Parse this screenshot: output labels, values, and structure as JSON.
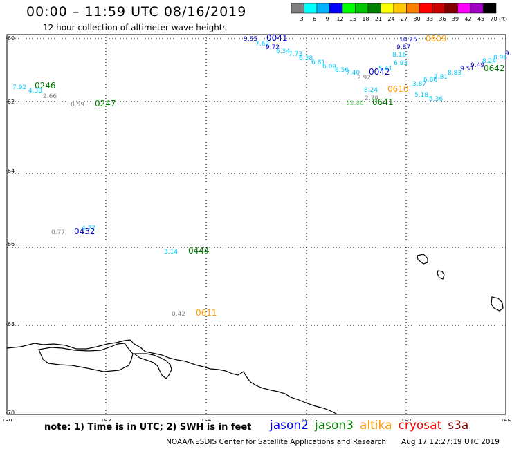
{
  "header": {
    "title": "00:00 – 11:59 UTC 08/16/2019",
    "subtitle": "12 hour collection of altimeter wave heights"
  },
  "colorbar": {
    "ticks": [
      "3",
      "6",
      "9",
      "12",
      "15",
      "18",
      "21",
      "24",
      "27",
      "30",
      "33",
      "36",
      "39",
      "42",
      "45",
      "70"
    ],
    "unit": "(ft)",
    "colors": [
      "#808080",
      "#00ffff",
      "#00b4ff",
      "#0000ff",
      "#00ff00",
      "#00c800",
      "#008000",
      "#ffff00",
      "#ffc800",
      "#ff8000",
      "#ff0000",
      "#c80000",
      "#800000",
      "#ff00ff",
      "#a000c0",
      "#000000"
    ]
  },
  "axes": {
    "lat_labels": [
      "-60",
      "-62",
      "-64",
      "-66",
      "-68",
      "-70"
    ],
    "lon_labels": [
      "150",
      "153",
      "156",
      "159",
      "162",
      "165"
    ]
  },
  "observations": [
    {
      "text": "9.55",
      "color": "#0000c8"
    },
    {
      "text": "0041",
      "color": "#0000c8"
    },
    {
      "text": "7.62",
      "color": "#00c8ff"
    },
    {
      "text": "9.72",
      "color": "#0000c8"
    },
    {
      "text": "6.34",
      "color": "#00c8ff"
    },
    {
      "text": "7.73",
      "color": "#00c8ff"
    },
    {
      "text": "6.38",
      "color": "#00c8ff"
    },
    {
      "text": "6.81",
      "color": "#00c8ff"
    },
    {
      "text": "6.09",
      "color": "#00c8ff"
    },
    {
      "text": "6.56",
      "color": "#00c8ff"
    },
    {
      "text": "7.40",
      "color": "#00c8ff"
    },
    {
      "text": "0042",
      "color": "#0000c8"
    },
    {
      "text": "2.92",
      "color": "#808080"
    },
    {
      "text": "10.25",
      "color": "#0000c8"
    },
    {
      "text": "0609",
      "color": "#ff9900"
    },
    {
      "text": "9.87",
      "color": "#0000c8"
    },
    {
      "text": "8.16",
      "color": "#00c8ff"
    },
    {
      "text": "6.93",
      "color": "#00c8ff"
    },
    {
      "text": "5.41",
      "color": "#00c8ff"
    },
    {
      "text": "8.24",
      "color": "#00c8ff"
    },
    {
      "text": "0610",
      "color": "#ff9900"
    },
    {
      "text": "3.87",
      "color": "#00c8ff"
    },
    {
      "text": "6.88",
      "color": "#00c8ff"
    },
    {
      "text": "7.81",
      "color": "#00c8ff"
    },
    {
      "text": "8.83",
      "color": "#00c8ff"
    },
    {
      "text": "9.51",
      "color": "#0000c8"
    },
    {
      "text": "9.49",
      "color": "#0000c8"
    },
    {
      "text": "8.24",
      "color": "#00c8ff"
    },
    {
      "text": "8.96",
      "color": "#00c8ff"
    },
    {
      "text": "0642",
      "color": "#008000"
    },
    {
      "text": "9.",
      "color": "#0000c8"
    },
    {
      "text": "2.79",
      "color": "#808080"
    },
    {
      "text": "5.18",
      "color": "#00c8ff"
    },
    {
      "text": "5.36",
      "color": "#00c8ff"
    },
    {
      "text": "13.80",
      "color": "#66dd66"
    },
    {
      "text": "0641",
      "color": "#008000"
    },
    {
      "text": "7.92",
      "color": "#00c8ff"
    },
    {
      "text": "0246",
      "color": "#008000"
    },
    {
      "text": "4.38",
      "color": "#00c8ff"
    },
    {
      "text": "2.66",
      "color": "#808080"
    },
    {
      "text": "0.59",
      "color": "#808080"
    },
    {
      "text": "0247",
      "color": "#008000"
    },
    {
      "text": "0.77",
      "color": "#808080"
    },
    {
      "text": "0432",
      "color": "#0000c8"
    },
    {
      "text": "4.77",
      "color": "#00c8ff"
    },
    {
      "text": "3.14",
      "color": "#00c8ff"
    },
    {
      "text": "0444",
      "color": "#008000"
    },
    {
      "text": "0.42",
      "color": "#808080"
    },
    {
      "text": "0611",
      "color": "#ff9900"
    }
  ],
  "note": "note:  1) Time is in UTC;  2) SWH is in feet",
  "legend": [
    {
      "label": "jason2",
      "color": "#0000ff"
    },
    {
      "label": "jason3",
      "color": "#008000"
    },
    {
      "label": "altika",
      "color": "#ff9900"
    },
    {
      "label": "cryosat",
      "color": "#ff0000"
    },
    {
      "label": "s3a",
      "color": "#8b0000"
    }
  ],
  "credits": {
    "source": "NOAA/NESDIS Center for Satellite Applications and Research",
    "timestamp": "Aug 17 12:27:19 UTC 2019"
  }
}
